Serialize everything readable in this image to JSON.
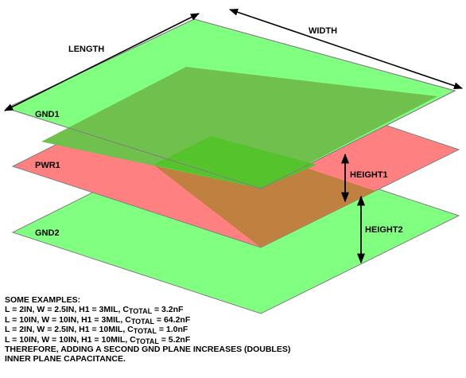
{
  "diagram": {
    "labels": {
      "length": "LENGTH",
      "width": "WIDTH",
      "gnd1": "GND1",
      "pwr1": "PWR1",
      "gnd2": "GND2",
      "height1": "HEIGHT1",
      "height2": "HEIGHT2"
    },
    "colors": {
      "ground_plane": "#80ff80",
      "power_plane": "#ff8080",
      "ground_over_power": "#6fc04d",
      "power_over_ground": "#c08040",
      "center_overlap": "#55c42c",
      "outline": "#808080",
      "arrow": "#000000"
    }
  },
  "examples": {
    "heading": "SOME EXAMPLES:",
    "rows": [
      {
        "prefix": "L = 2IN, W = 2.5IN, H1 = 3MIL, C",
        "sub": "TOTAL",
        "suffix": " = 3.2nF"
      },
      {
        "prefix": "L = 10IN, W = 10IN, H1 = 3MIL, C",
        "sub": "TOTAL",
        "suffix": " = 64.2nF"
      },
      {
        "prefix": "L = 2IN, W = 2.5IN, H1 = 10MIL, C",
        "sub": "TOTAL",
        "suffix": " = 1.0nF"
      },
      {
        "prefix": "L = 10IN, W = 10IN, H1 = 10MIL, C",
        "sub": "TOTAL",
        "suffix": " = 5.2nF"
      }
    ],
    "conclusion_line1": "THEREFORE, ADDING A SECOND GND PLANE INCREASES (DOUBLES)",
    "conclusion_line2": "INNER PLANE CAPACITANCE."
  }
}
